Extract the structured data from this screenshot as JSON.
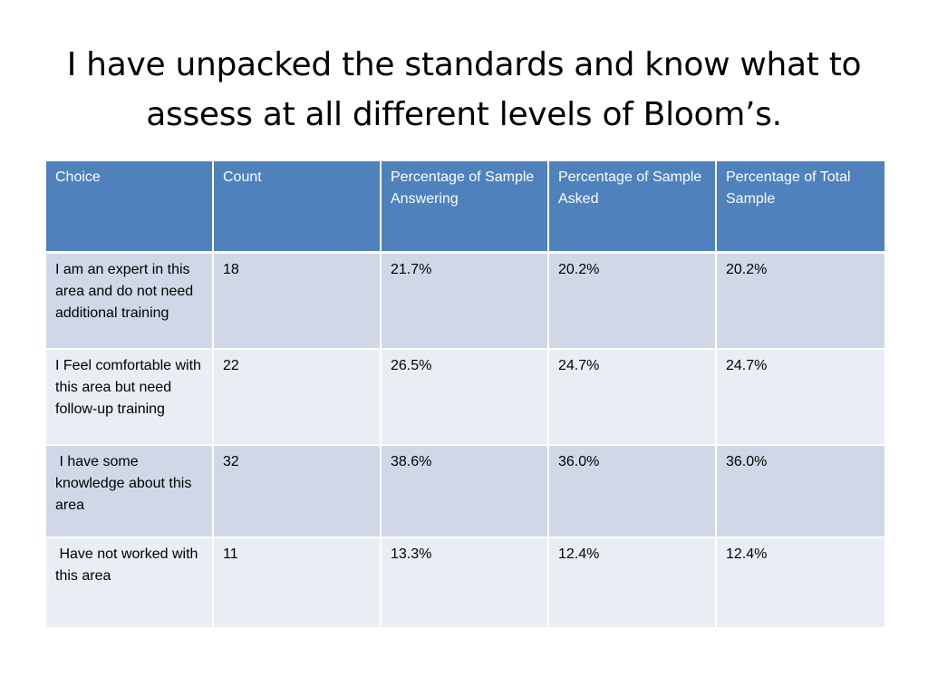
{
  "slide": {
    "title": "I have unpacked the standards and know what to assess at all different levels of Bloom’s."
  },
  "table": {
    "headers": [
      "Choice",
      "Count",
      "Percentage of Sample Answering",
      "Percentage of Sample Asked",
      "Percentage of Total Sample"
    ],
    "rows": [
      [
        "I am an expert in this area and do not need additional training",
        "18",
        "21.7%",
        "20.2%",
        "20.2%"
      ],
      [
        "I Feel comfortable with this area but need follow-up training",
        "22",
        "26.5%",
        "24.7%",
        "24.7%"
      ],
      [
        " I have some knowledge about this area",
        "32",
        "38.6%",
        "36.0%",
        "36.0%"
      ],
      [
        " Have not worked with this area",
        "11",
        "13.3%",
        "12.4%",
        "12.4%"
      ]
    ]
  },
  "colors": {
    "header_bg": "#4f81bd",
    "row_odd_bg": "#d0d8e8",
    "row_even_bg": "#e9edf4"
  }
}
